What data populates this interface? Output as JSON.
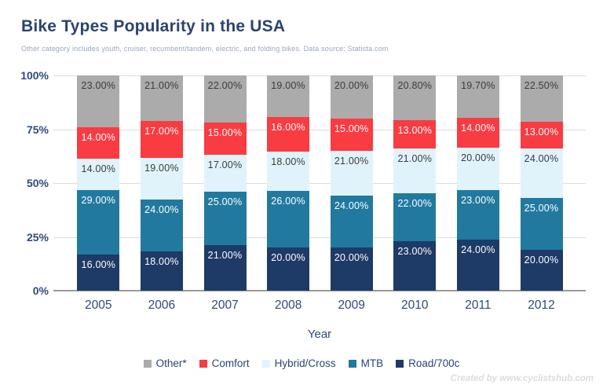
{
  "page": {
    "title": "Bike Types Popularity in the USA",
    "subtitle": "Other category includes youth, cruiser, recumbent/tandem, electric, and folding bikes. Data source: Statista.com",
    "footer": "Created by www.cyclistshub.com"
  },
  "chart_data": {
    "type": "bar",
    "stacked": true,
    "percent_stacked": true,
    "title": "Bike Types Popularity in the USA",
    "xlabel": "Year",
    "ylabel": "",
    "grid": true,
    "legend_position": "bottom",
    "ylim": [
      0,
      100
    ],
    "categories": [
      "2005",
      "2006",
      "2007",
      "2008",
      "2009",
      "2010",
      "2011",
      "2012"
    ],
    "y_ticks": [
      {
        "value": 0,
        "label": "0%"
      },
      {
        "value": 25,
        "label": "25%"
      },
      {
        "value": 50,
        "label": "50%"
      },
      {
        "value": 75,
        "label": "75%"
      },
      {
        "value": 100,
        "label": "100%"
      }
    ],
    "series": [
      {
        "name": "Road/700c",
        "color": "#1e3a66",
        "label_color": "#ffffff",
        "values": [
          16,
          18,
          21,
          20,
          20,
          23,
          24,
          20
        ],
        "labels": [
          "16.00%",
          "18.00%",
          "21.00%",
          "20.00%",
          "20.00%",
          "23.00%",
          "24.00%",
          "20.00%"
        ]
      },
      {
        "name": "MTB",
        "color": "#22799f",
        "label_color": "#ffffff",
        "values": [
          29,
          24,
          25,
          26,
          24,
          22,
          23,
          25
        ],
        "labels": [
          "29.00%",
          "24.00%",
          "25.00%",
          "26.00%",
          "24.00%",
          "22.00%",
          "23.00%",
          "25.00%"
        ]
      },
      {
        "name": "Hybrid/Cross",
        "color": "#e0f3fb",
        "label_color": "#3b3b3b",
        "values": [
          14,
          19,
          17,
          18,
          21,
          21,
          20,
          24
        ],
        "labels": [
          "14.00%",
          "19.00%",
          "17.00%",
          "18.00%",
          "21.00%",
          "21.00%",
          "20.00%",
          "24.00%"
        ]
      },
      {
        "name": "Comfort",
        "color": "#f93b42",
        "label_color": "#ffffff",
        "values": [
          14,
          17,
          15,
          16,
          15,
          13,
          14,
          13
        ],
        "labels": [
          "14.00%",
          "17.00%",
          "15.00%",
          "16.00%",
          "15.00%",
          "13.00%",
          "14.00%",
          "13.00%"
        ]
      },
      {
        "name": "Other*",
        "color": "#ababab",
        "label_color": "#3b3b3b",
        "values": [
          23,
          21,
          22,
          19,
          20,
          20.8,
          19.7,
          22.5
        ],
        "labels": [
          "23.00%",
          "21.00%",
          "22.00%",
          "19.00%",
          "20.00%",
          "20.80%",
          "19.70%",
          "22.50%"
        ]
      }
    ]
  }
}
